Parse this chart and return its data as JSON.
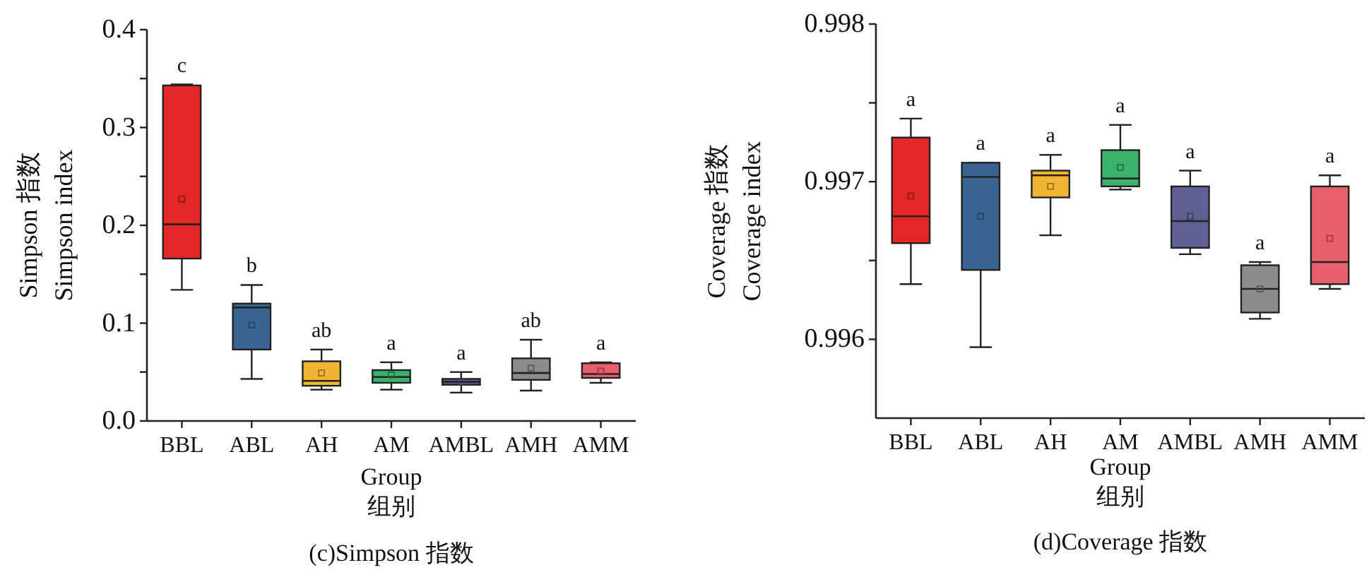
{
  "chart_data": [
    {
      "type": "box",
      "title": "(c)Simpson 指数",
      "xlabel": "Group\n组别",
      "ylabel": "Simpson 指数\nSimpson index",
      "categories": [
        "BBL",
        "ABL",
        "AH",
        "AM",
        "AMBL",
        "AMH",
        "AMM"
      ],
      "colors": [
        "#e32726",
        "#3a6591",
        "#f0b533",
        "#3bb26b",
        "#5f6196",
        "#8c8c8c",
        "#e8606a"
      ],
      "boxes": [
        {
          "low": 0.134,
          "q1": 0.166,
          "median": 0.201,
          "q3": 0.343,
          "high": 0.344,
          "mean": 0.227
        },
        {
          "low": 0.043,
          "q1": 0.073,
          "median": 0.116,
          "q3": 0.12,
          "high": 0.139,
          "mean": 0.098
        },
        {
          "low": 0.032,
          "q1": 0.036,
          "median": 0.041,
          "q3": 0.061,
          "high": 0.073,
          "mean": 0.049
        },
        {
          "low": 0.032,
          "q1": 0.039,
          "median": 0.045,
          "q3": 0.052,
          "high": 0.06,
          "mean": 0.047
        },
        {
          "low": 0.029,
          "q1": 0.037,
          "median": 0.04,
          "q3": 0.043,
          "high": 0.05,
          "mean": 0.04
        },
        {
          "low": 0.031,
          "q1": 0.042,
          "median": 0.049,
          "q3": 0.064,
          "high": 0.083,
          "mean": 0.054
        },
        {
          "low": 0.039,
          "q1": 0.044,
          "median": 0.048,
          "q3": 0.059,
          "high": 0.06,
          "mean": 0.051
        }
      ],
      "ylim": [
        0,
        0.4
      ],
      "yticks": [
        {
          "value": 0,
          "label": "0.0"
        },
        {
          "value": 0.05,
          "label": null
        },
        0.1,
        {
          "value": 0.15,
          "label": null
        },
        0.2,
        {
          "value": 0.25,
          "label": null
        },
        0.3,
        {
          "value": 0.35,
          "label": null
        },
        0.4
      ],
      "annotations": [
        "c",
        "b",
        "ab",
        "a",
        "a",
        "ab",
        "a"
      ]
    },
    {
      "type": "box",
      "title": "(d)Coverage 指数",
      "xlabel": "Group\n组别",
      "ylabel": "Coverage 指数\nCoverage index",
      "categories": [
        "BBL",
        "ABL",
        "AH",
        "AM",
        "AMBL",
        "AMH",
        "AMM"
      ],
      "colors": [
        "#e32726",
        "#3a6591",
        "#f0b533",
        "#3bb26b",
        "#5f6196",
        "#8c8c8c",
        "#e8606a"
      ],
      "boxes": [
        {
          "low": 0.99635,
          "q1": 0.99661,
          "median": 0.99678,
          "q3": 0.99728,
          "high": 0.9974,
          "mean": 0.99691
        },
        {
          "low": 0.99595,
          "q1": 0.99644,
          "median": 0.99703,
          "q3": 0.99712,
          "high": 0.99712,
          "mean": 0.99678
        },
        {
          "low": 0.99666,
          "q1": 0.9969,
          "median": 0.99704,
          "q3": 0.99707,
          "high": 0.99717,
          "mean": 0.99697
        },
        {
          "low": 0.99695,
          "q1": 0.99697,
          "median": 0.99702,
          "q3": 0.9972,
          "high": 0.99736,
          "mean": 0.99709
        },
        {
          "low": 0.99654,
          "q1": 0.99658,
          "median": 0.99675,
          "q3": 0.99697,
          "high": 0.99707,
          "mean": 0.99678
        },
        {
          "low": 0.99613,
          "q1": 0.99617,
          "median": 0.99632,
          "q3": 0.99647,
          "high": 0.99649,
          "mean": 0.99632
        },
        {
          "low": 0.99632,
          "q1": 0.99635,
          "median": 0.99649,
          "q3": 0.99697,
          "high": 0.99704,
          "mean": 0.99664
        }
      ],
      "ylim": [
        0.9955,
        0.998
      ],
      "yticks": [
        0.996,
        {
          "value": 0.9965,
          "label": null
        },
        0.997,
        {
          "value": 0.9975,
          "label": null
        },
        0.998
      ],
      "annotations": [
        "a",
        "a",
        "a",
        "a",
        "a",
        "a",
        "a"
      ]
    }
  ]
}
